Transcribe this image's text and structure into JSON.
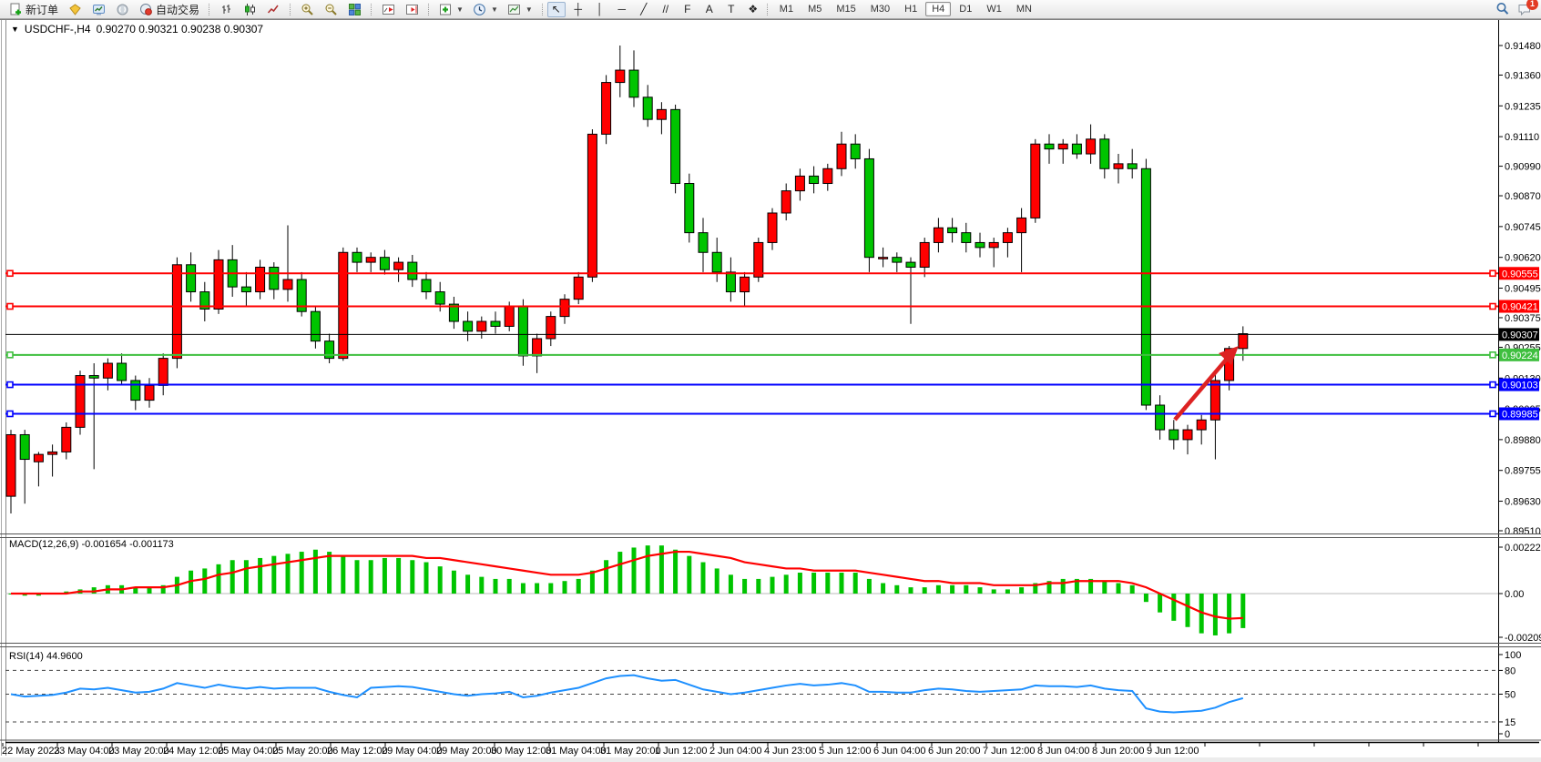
{
  "toolbar": {
    "new_order_label": "新订单",
    "auto_trading_label": "自动交易",
    "drawing_tools": [
      {
        "name": "cursor-tool",
        "glyph": "↖",
        "active": true
      },
      {
        "name": "crosshair-tool",
        "glyph": "┼",
        "active": false
      },
      {
        "name": "vertical-line-tool",
        "glyph": "│",
        "active": false
      },
      {
        "name": "horizontal-line-tool",
        "glyph": "─",
        "active": false
      },
      {
        "name": "trendline-tool",
        "glyph": "╱",
        "active": false
      },
      {
        "name": "channel-tool",
        "glyph": "//",
        "active": false
      },
      {
        "name": "fibonacci-tool",
        "glyph": "F",
        "active": false
      },
      {
        "name": "text-tool",
        "glyph": "A",
        "active": false
      },
      {
        "name": "label-tool",
        "glyph": "T",
        "active": false
      },
      {
        "name": "shapes-tool",
        "glyph": "❖",
        "active": false
      }
    ],
    "timeframes": [
      "M1",
      "M5",
      "M15",
      "M30",
      "H1",
      "H4",
      "D1",
      "W1",
      "MN"
    ],
    "active_timeframe": "H4",
    "notification_badge": "1"
  },
  "chart_header": {
    "dropdown_glyph": "▼",
    "title": "USDCHF-,H4",
    "ohlc": "0.90270 0.90321 0.90238 0.90307"
  },
  "chart_data": [
    {
      "type": "candlestick",
      "symbol": "USDCHF",
      "timeframe": "H4",
      "bull_color": "#FF0000",
      "bear_color": "#00C400",
      "grid": false,
      "price_ticks": [
        "0.91480",
        "0.91360",
        "0.91235",
        "0.91110",
        "0.90990",
        "0.90870",
        "0.90745",
        "0.90620",
        "0.90495",
        "0.90375",
        "0.90255",
        "0.90130",
        "0.90005",
        "0.89880",
        "0.89755",
        "0.89630",
        "0.89510"
      ],
      "time_labels": [
        "22 May 2023",
        "23 May 04:00",
        "23 May 20:00",
        "24 May 12:00",
        "25 May 04:00",
        "25 May 20:00",
        "26 May 12:00",
        "29 May 04:00",
        "29 May 20:00",
        "30 May 12:00",
        "31 May 04:00",
        "31 May 20:00",
        "1 Jun 12:00",
        "2 Jun 04:00",
        "4 Jun 23:00",
        "5 Jun 12:00",
        "6 Jun 04:00",
        "6 Jun 20:00",
        "7 Jun 12:00",
        "8 Jun 04:00",
        "8 Jun 20:00",
        "9 Jun 12:00"
      ],
      "hlines": [
        {
          "price": "0.90555",
          "color": "#FF0000"
        },
        {
          "price": "0.90421",
          "color": "#FF0000"
        },
        {
          "price": "0.90307",
          "color": "#000000",
          "current": true
        },
        {
          "price": "0.90224",
          "color": "#3FBF3F"
        },
        {
          "price": "0.90103",
          "color": "#0000FF"
        },
        {
          "price": "0.89985",
          "color": "#0000FF"
        }
      ],
      "annotation_arrow": {
        "color": "#DD2222",
        "direction": "up-right"
      },
      "candles": [
        [
          0.8965,
          0.8992,
          0.8958,
          0.899
        ],
        [
          0.899,
          0.8992,
          0.8962,
          0.898
        ],
        [
          0.8979,
          0.8983,
          0.8969,
          0.8982
        ],
        [
          0.8982,
          0.8986,
          0.8973,
          0.8983
        ],
        [
          0.8983,
          0.8995,
          0.898,
          0.8993
        ],
        [
          0.8993,
          0.9016,
          0.899,
          0.9014
        ],
        [
          0.9014,
          0.9019,
          0.8976,
          0.9013
        ],
        [
          0.9013,
          0.9021,
          0.9008,
          0.9019
        ],
        [
          0.9019,
          0.9023,
          0.901,
          0.9012
        ],
        [
          0.9012,
          0.9014,
          0.9,
          0.9004
        ],
        [
          0.9004,
          0.9013,
          0.9001,
          0.901
        ],
        [
          0.901,
          0.9023,
          0.9006,
          0.9021
        ],
        [
          0.9021,
          0.9062,
          0.9017,
          0.9059
        ],
        [
          0.9059,
          0.9064,
          0.9044,
          0.9048
        ],
        [
          0.9048,
          0.9052,
          0.9036,
          0.9041
        ],
        [
          0.9041,
          0.9065,
          0.9039,
          0.9061
        ],
        [
          0.9061,
          0.9067,
          0.9046,
          0.905
        ],
        [
          0.905,
          0.9056,
          0.9042,
          0.9048
        ],
        [
          0.9048,
          0.9061,
          0.9045,
          0.9058
        ],
        [
          0.9058,
          0.906,
          0.9045,
          0.9049
        ],
        [
          0.9049,
          0.9075,
          0.9044,
          0.9053
        ],
        [
          0.9053,
          0.9056,
          0.9038,
          0.904
        ],
        [
          0.904,
          0.9042,
          0.9025,
          0.9028
        ],
        [
          0.9028,
          0.9031,
          0.9019,
          0.9021
        ],
        [
          0.9021,
          0.9066,
          0.902,
          0.9064
        ],
        [
          0.9064,
          0.9066,
          0.9056,
          0.906
        ],
        [
          0.906,
          0.9064,
          0.9056,
          0.9062
        ],
        [
          0.9062,
          0.9065,
          0.9055,
          0.9057
        ],
        [
          0.9057,
          0.9062,
          0.9052,
          0.906
        ],
        [
          0.906,
          0.9063,
          0.905,
          0.9053
        ],
        [
          0.9053,
          0.9056,
          0.9045,
          0.9048
        ],
        [
          0.9048,
          0.9052,
          0.904,
          0.9043
        ],
        [
          0.9043,
          0.9046,
          0.9033,
          0.9036
        ],
        [
          0.9036,
          0.904,
          0.9028,
          0.9032
        ],
        [
          0.9032,
          0.9038,
          0.9029,
          0.9036
        ],
        [
          0.9036,
          0.904,
          0.9031,
          0.9034
        ],
        [
          0.9034,
          0.9044,
          0.9032,
          0.9042
        ],
        [
          0.9042,
          0.9045,
          0.9018,
          0.9022
        ],
        [
          0.9022,
          0.9031,
          0.9015,
          0.9029
        ],
        [
          0.9029,
          0.904,
          0.9026,
          0.9038
        ],
        [
          0.9038,
          0.9047,
          0.9035,
          0.9045
        ],
        [
          0.9045,
          0.9056,
          0.9043,
          0.9054
        ],
        [
          0.9054,
          0.9114,
          0.9052,
          0.9112
        ],
        [
          0.9112,
          0.9136,
          0.9108,
          0.9133
        ],
        [
          0.9133,
          0.9148,
          0.9127,
          0.9138
        ],
        [
          0.9138,
          0.9146,
          0.9123,
          0.9127
        ],
        [
          0.9127,
          0.9132,
          0.9115,
          0.9118
        ],
        [
          0.9118,
          0.9125,
          0.9112,
          0.9122
        ],
        [
          0.9122,
          0.9124,
          0.9088,
          0.9092
        ],
        [
          0.9092,
          0.9096,
          0.9068,
          0.9072
        ],
        [
          0.9072,
          0.9078,
          0.9056,
          0.9064
        ],
        [
          0.9064,
          0.907,
          0.9052,
          0.9056
        ],
        [
          0.9056,
          0.9062,
          0.9044,
          0.9048
        ],
        [
          0.9048,
          0.9056,
          0.9042,
          0.9054
        ],
        [
          0.9054,
          0.907,
          0.9052,
          0.9068
        ],
        [
          0.9068,
          0.9082,
          0.9065,
          0.908
        ],
        [
          0.908,
          0.9092,
          0.9077,
          0.9089
        ],
        [
          0.9089,
          0.9098,
          0.9085,
          0.9095
        ],
        [
          0.9095,
          0.9099,
          0.9088,
          0.9092
        ],
        [
          0.9092,
          0.91,
          0.9089,
          0.9098
        ],
        [
          0.9098,
          0.9113,
          0.9095,
          0.9108
        ],
        [
          0.9108,
          0.9112,
          0.9098,
          0.9102
        ],
        [
          0.9102,
          0.9106,
          0.9056,
          0.9062
        ],
        [
          0.9062,
          0.9066,
          0.9058,
          0.9062
        ],
        [
          0.9062,
          0.9064,
          0.9056,
          0.906
        ],
        [
          0.906,
          0.9062,
          0.9035,
          0.9058
        ],
        [
          0.9058,
          0.907,
          0.9054,
          0.9068
        ],
        [
          0.9068,
          0.9078,
          0.9064,
          0.9074
        ],
        [
          0.9074,
          0.9078,
          0.9068,
          0.9072
        ],
        [
          0.9072,
          0.9076,
          0.9064,
          0.9068
        ],
        [
          0.9068,
          0.9072,
          0.9062,
          0.9066
        ],
        [
          0.9066,
          0.907,
          0.9058,
          0.9068
        ],
        [
          0.9068,
          0.9074,
          0.9062,
          0.9072
        ],
        [
          0.9072,
          0.9082,
          0.9056,
          0.9078
        ],
        [
          0.9078,
          0.911,
          0.9076,
          0.9108
        ],
        [
          0.9108,
          0.9112,
          0.91,
          0.9106
        ],
        [
          0.9106,
          0.911,
          0.91,
          0.9108
        ],
        [
          0.9108,
          0.9112,
          0.9102,
          0.9104
        ],
        [
          0.9104,
          0.9116,
          0.91,
          0.911
        ],
        [
          0.911,
          0.9112,
          0.9094,
          0.9098
        ],
        [
          0.9098,
          0.9104,
          0.9092,
          0.91
        ],
        [
          0.91,
          0.9106,
          0.9094,
          0.9098
        ],
        [
          0.9098,
          0.9102,
          0.9,
          0.9002
        ],
        [
          0.9002,
          0.9006,
          0.8988,
          0.8992
        ],
        [
          0.8992,
          0.8996,
          0.8984,
          0.8988
        ],
        [
          0.8988,
          0.8994,
          0.8982,
          0.8992
        ],
        [
          0.8992,
          0.8998,
          0.8986,
          0.8996
        ],
        [
          0.8996,
          0.9016,
          0.898,
          0.9012
        ],
        [
          0.9012,
          0.9026,
          0.9008,
          0.9025
        ],
        [
          0.9025,
          0.9034,
          0.902,
          0.9031
        ]
      ]
    },
    {
      "type": "macd",
      "label": "MACD(12,26,9) -0.001654 -0.001173",
      "y_ticks": [
        "0.00222",
        "0.00",
        "-0.00209"
      ],
      "histogram_color": "#00C400",
      "signal_color": "#FF0000",
      "histogram": [
        0.0,
        -0.0001,
        -0.0001,
        0.0,
        0.0001,
        0.0002,
        0.0003,
        0.0004,
        0.0004,
        0.0003,
        0.0003,
        0.0004,
        0.0008,
        0.0011,
        0.0012,
        0.0014,
        0.0016,
        0.0016,
        0.0017,
        0.0018,
        0.0019,
        0.002,
        0.0021,
        0.002,
        0.0018,
        0.0016,
        0.0016,
        0.0017,
        0.0017,
        0.0016,
        0.0015,
        0.0013,
        0.0011,
        0.0009,
        0.0008,
        0.0007,
        0.0007,
        0.0005,
        0.0005,
        0.0005,
        0.0006,
        0.0007,
        0.0011,
        0.0016,
        0.002,
        0.0022,
        0.0023,
        0.0023,
        0.0021,
        0.0018,
        0.0015,
        0.0012,
        0.0009,
        0.0007,
        0.0007,
        0.0008,
        0.0009,
        0.001,
        0.001,
        0.001,
        0.001,
        0.001,
        0.0007,
        0.0005,
        0.0004,
        0.0003,
        0.0003,
        0.0004,
        0.0004,
        0.0004,
        0.0003,
        0.0002,
        0.0002,
        0.0003,
        0.0005,
        0.0006,
        0.0007,
        0.0007,
        0.0007,
        0.0006,
        0.0005,
        0.0004,
        -0.0004,
        -0.0009,
        -0.0013,
        -0.0016,
        -0.0019,
        -0.002,
        -0.0019,
        -0.00165
      ],
      "signal": [
        0.0,
        0.0,
        0.0,
        0.0,
        0.0,
        0.0001,
        0.0001,
        0.0002,
        0.0002,
        0.0003,
        0.0003,
        0.0003,
        0.0004,
        0.0006,
        0.0007,
        0.0009,
        0.001,
        0.0012,
        0.0013,
        0.0014,
        0.0015,
        0.0016,
        0.0017,
        0.0018,
        0.0018,
        0.0018,
        0.0018,
        0.0018,
        0.0018,
        0.0018,
        0.0017,
        0.0017,
        0.0016,
        0.0015,
        0.0014,
        0.0013,
        0.0012,
        0.0011,
        0.001,
        0.0009,
        0.0009,
        0.0009,
        0.001,
        0.0012,
        0.0014,
        0.0016,
        0.0018,
        0.0019,
        0.002,
        0.002,
        0.0019,
        0.0018,
        0.0017,
        0.0015,
        0.0014,
        0.0013,
        0.0012,
        0.0012,
        0.0011,
        0.0011,
        0.0011,
        0.0011,
        0.001,
        0.0009,
        0.0008,
        0.0007,
        0.0006,
        0.0006,
        0.0005,
        0.0005,
        0.0005,
        0.0004,
        0.0004,
        0.0004,
        0.0004,
        0.0005,
        0.0005,
        0.0006,
        0.0006,
        0.0006,
        0.0006,
        0.0005,
        0.0003,
        0.0,
        -0.0003,
        -0.0006,
        -0.0009,
        -0.0011,
        -0.0012,
        -0.00117
      ]
    },
    {
      "type": "rsi",
      "label": "RSI(14) 44.9600",
      "y_ticks": [
        "100",
        "80",
        "50",
        "15",
        "0"
      ],
      "levels": [
        80,
        50,
        15
      ],
      "line_color": "#1E90FF",
      "values": [
        50,
        47,
        48,
        49,
        52,
        57,
        56,
        58,
        55,
        52,
        53,
        57,
        64,
        61,
        58,
        62,
        59,
        57,
        59,
        57,
        58,
        58,
        58,
        53,
        49,
        46,
        58,
        59,
        60,
        59,
        56,
        53,
        50,
        48,
        50,
        51,
        53,
        46,
        48,
        52,
        55,
        58,
        64,
        70,
        73,
        74,
        70,
        67,
        68,
        62,
        56,
        53,
        50,
        52,
        55,
        58,
        61,
        63,
        61,
        62,
        64,
        61,
        53,
        53,
        52,
        52,
        55,
        57,
        56,
        54,
        53,
        54,
        55,
        56,
        61,
        60,
        60,
        59,
        61,
        57,
        55,
        54,
        32,
        28,
        27,
        28,
        29,
        33,
        40,
        44.96
      ]
    }
  ]
}
